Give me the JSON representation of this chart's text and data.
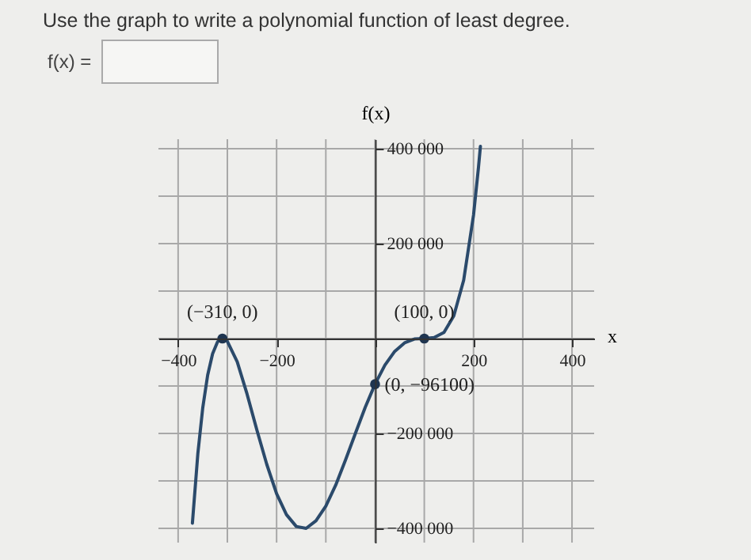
{
  "chart_data": {
    "type": "line",
    "title": "Use the graph to write a polynomial function of least degree.",
    "xlabel": "x",
    "ylabel": "f(x)",
    "annotations": [
      "f(x) =",
      {
        "text": "(−310, 0)",
        "x": -310,
        "y": 0
      },
      {
        "text": "(100, 0)",
        "x": 100,
        "y": 0
      },
      {
        "text": "(0, −96100)",
        "x": 0,
        "y": -96100
      }
    ],
    "series": [
      {
        "color": "#2b4a6b",
        "x": [
          -371,
          -360,
          -350,
          -340,
          -330,
          -320,
          -310,
          -300,
          -280,
          -260,
          -240,
          -220,
          -200,
          -180,
          -160,
          -140,
          -120,
          -100,
          -80,
          -60,
          -40,
          -20,
          0,
          20,
          40,
          60,
          80,
          100,
          120,
          140,
          160,
          180,
          200,
          210,
          214
        ],
        "values": [
          -389000,
          -243000,
          -146000,
          -77000,
          -32000,
          -7000,
          0,
          -6000,
          -49000,
          -117000,
          -193000,
          -265000,
          -327000,
          -371000,
          -396000,
          -400000,
          -384000,
          -353000,
          -309000,
          -256000,
          -200000,
          -145000,
          -96000,
          -56000,
          -27000,
          -9000,
          -1000,
          0,
          2000,
          13000,
          48000,
          123000,
          260000,
          360000,
          405000
        ]
      },
      {
        "type": "scatter",
        "color": "#1f3550",
        "marker": "circle",
        "x": [
          -310,
          100,
          0
        ],
        "values": [
          0,
          0,
          -96100
        ]
      }
    ],
    "xlim": [
      -440,
      445
    ],
    "ylim": [
      -430000,
      420000
    ],
    "xticks": [
      {
        "value": -400,
        "label": "−400"
      },
      {
        "value": -300,
        "label": null
      },
      {
        "value": -200,
        "label": "−200"
      },
      {
        "value": -100,
        "label": null
      },
      {
        "value": 0,
        "label": null
      },
      {
        "value": 100,
        "label": null
      },
      200,
      {
        "value": 300,
        "label": null
      },
      400
    ],
    "yticks": [
      {
        "value": -400000,
        "label": "−400 000"
      },
      {
        "value": -300000,
        "label": null
      },
      {
        "value": -200000,
        "label": "−200 000"
      },
      {
        "value": -100000,
        "label": null
      },
      {
        "value": 0,
        "label": null
      },
      {
        "value": 100000,
        "label": null
      },
      {
        "value": 200000,
        "label": "200 000"
      },
      {
        "value": 300000,
        "label": null
      },
      {
        "value": 400000,
        "label": "400 000"
      }
    ],
    "grid": true
  }
}
